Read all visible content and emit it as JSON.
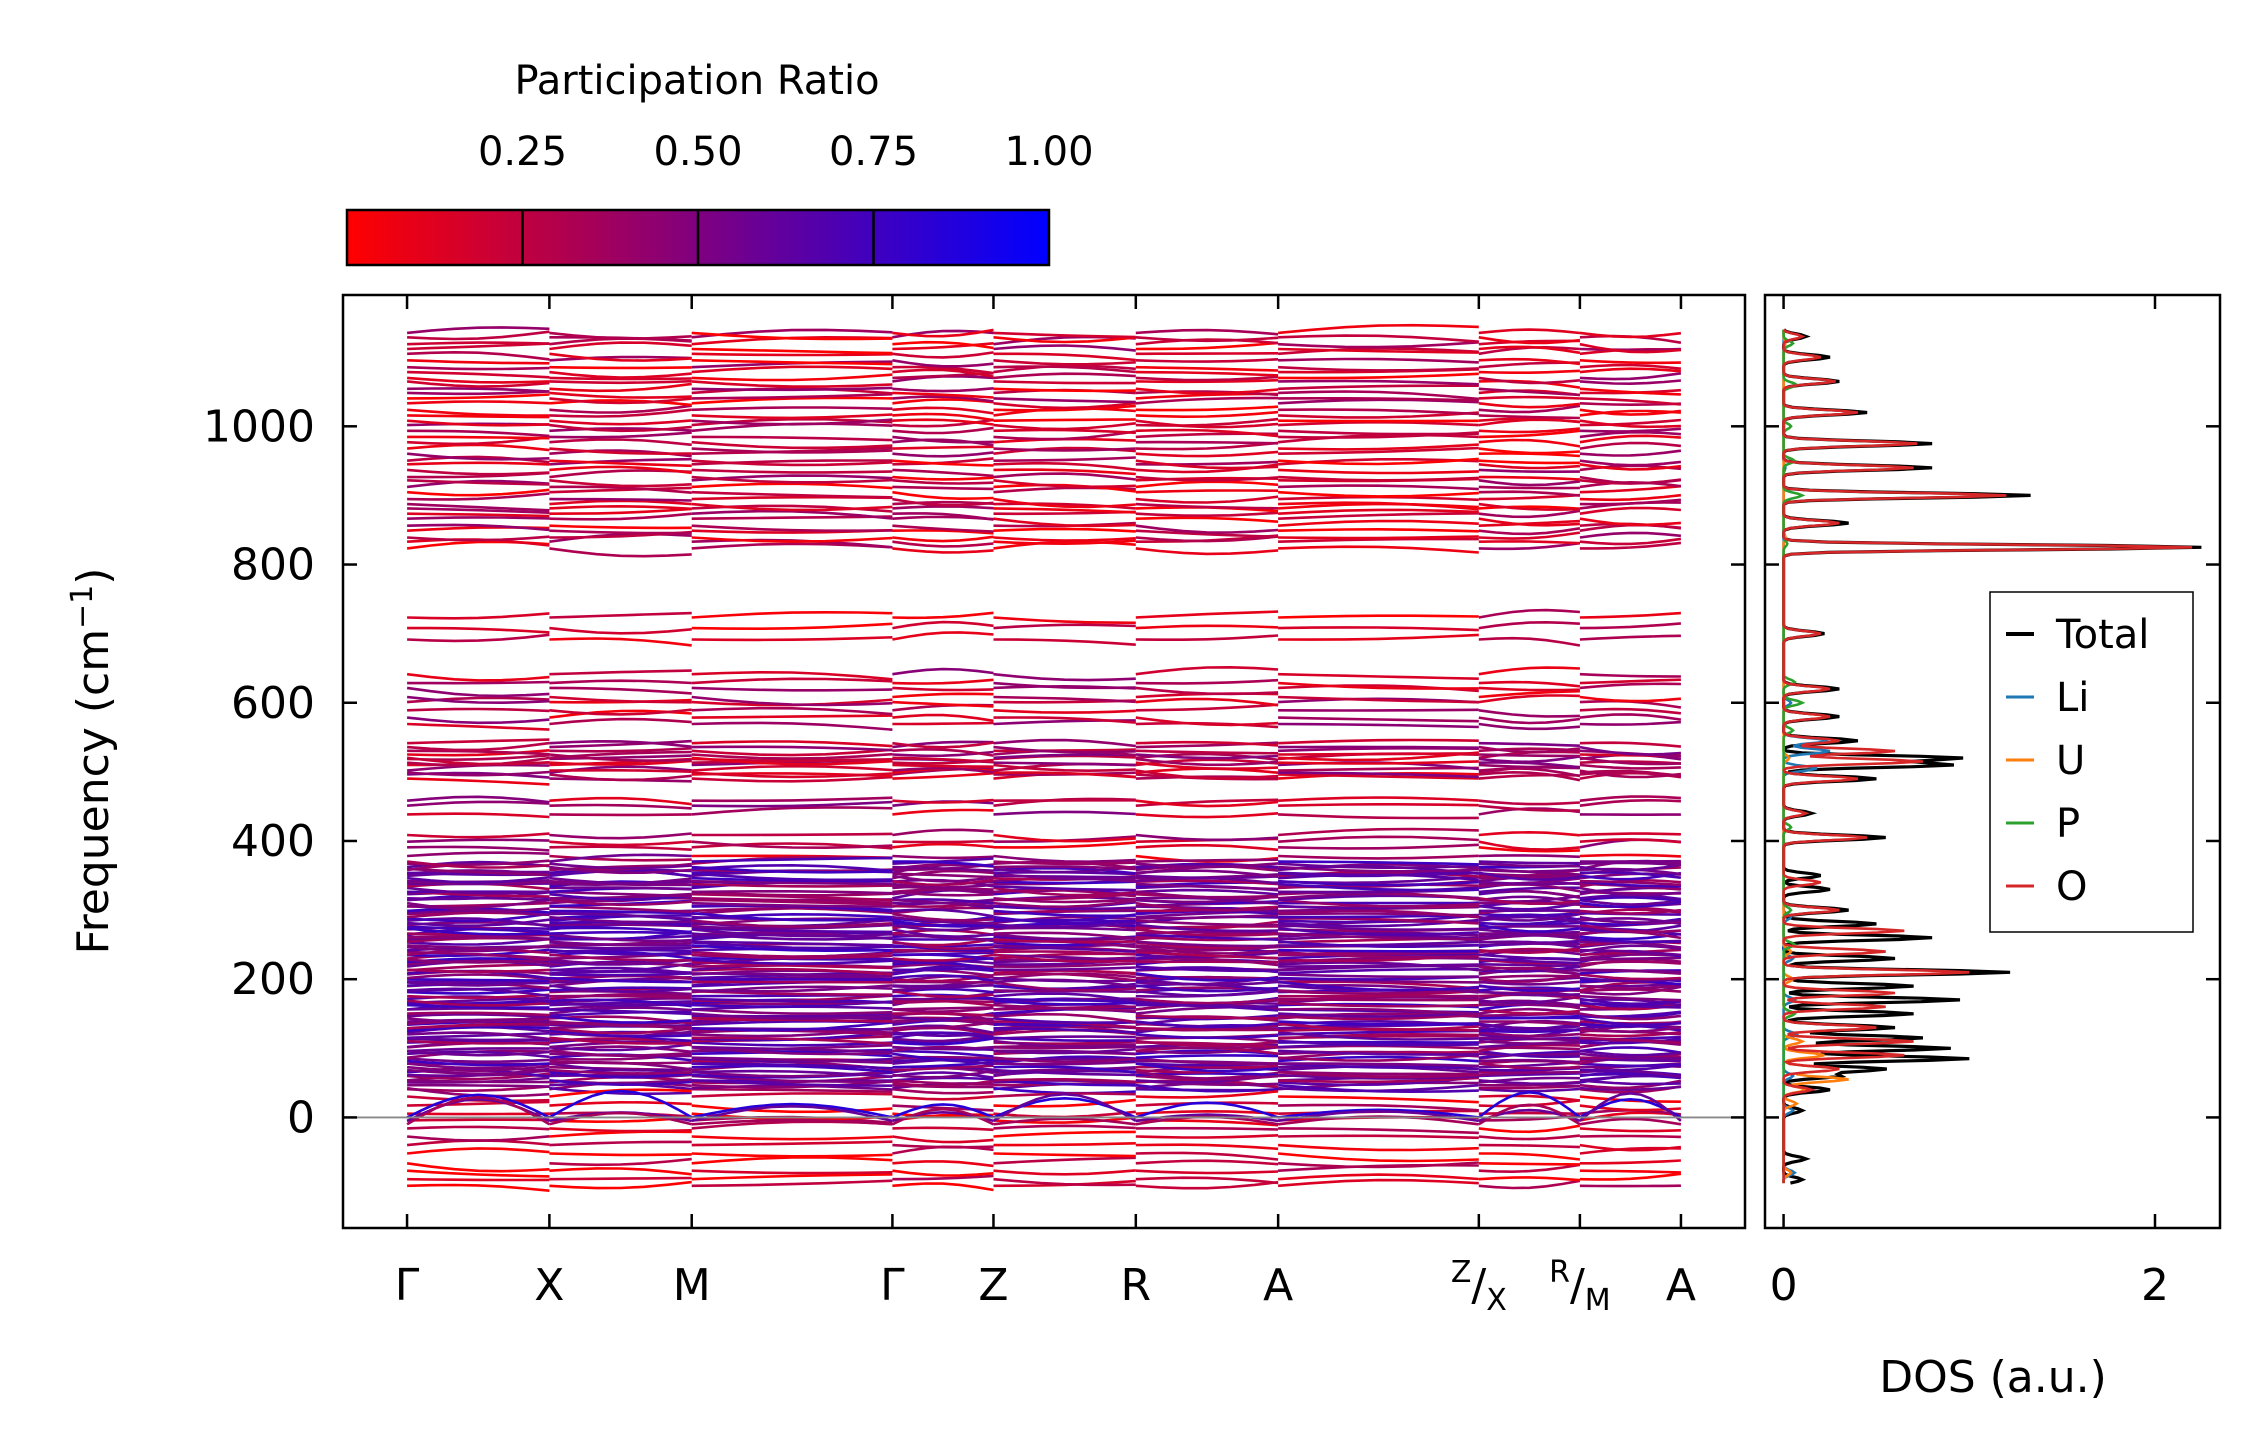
{
  "colorbar": {
    "title": "Participation Ratio",
    "ticks": [
      0.25,
      0.5,
      0.75,
      1.0
    ],
    "tick_labels": [
      "0.25",
      "0.50",
      "0.75",
      "1.00"
    ],
    "range": [
      0.0,
      1.0
    ],
    "color_low": "#ff0000",
    "color_high": "#0000ff"
  },
  "chart_data": [
    {
      "type": "line",
      "name": "phonon-band-structure",
      "ylabel": "Frequency (cm",
      "ylabel_sup": "−1",
      "ylabel_end": ")",
      "ylim": [
        -160,
        1190
      ],
      "yticks": [
        0,
        200,
        400,
        600,
        800,
        1000
      ],
      "ytick_labels": [
        "0",
        "200",
        "400",
        "600",
        "800",
        "1000"
      ],
      "segments": [
        {
          "from": "Γ",
          "to": "X",
          "x0": 0,
          "x1": 1
        },
        {
          "from": "X",
          "to": "M",
          "x0": 1,
          "x1": 2
        },
        {
          "from": "M",
          "to": "Γ",
          "x0": 2,
          "x1": 3.41
        },
        {
          "from": "Γ",
          "to": "Z",
          "x0": 3.41,
          "x1": 4.12
        },
        {
          "from": "Z",
          "to": "R",
          "x0": 4.12,
          "x1": 5.12
        },
        {
          "from": "R",
          "to": "A",
          "x0": 5.12,
          "x1": 6.12
        },
        {
          "from": "A",
          "to": "Z",
          "x0": 6.12,
          "x1": 7.53
        },
        {
          "from": "X",
          "to": "R",
          "x0": 7.53,
          "x1": 8.24
        },
        {
          "from": "M",
          "to": "A",
          "x0": 8.24,
          "x1": 8.95
        }
      ],
      "xticks": [
        {
          "pos": 0,
          "label": "Γ"
        },
        {
          "pos": 1,
          "label": "X"
        },
        {
          "pos": 2,
          "label": "M"
        },
        {
          "pos": 3.41,
          "label": "Γ"
        },
        {
          "pos": 4.12,
          "label": "Z"
        },
        {
          "pos": 5.12,
          "label": "R"
        },
        {
          "pos": 6.12,
          "label": "A"
        },
        {
          "pos": 7.53,
          "label_sup": "Z",
          "label_sep": "/",
          "label_sub": "X"
        },
        {
          "pos": 8.24,
          "label_sup": "R",
          "label_sep": "/",
          "label_sub": "M"
        },
        {
          "pos": 8.95,
          "label": "A"
        }
      ],
      "xlim": [
        -0.45,
        9.4
      ],
      "zero_line": 0,
      "band_groups": [
        {
          "range": [
            825,
            1135
          ],
          "count": 40,
          "participation_ratio": 0.2
        },
        {
          "range": [
            690,
            725
          ],
          "count": 3,
          "participation_ratio": 0.15
        },
        {
          "range": [
            570,
            640
          ],
          "count": 8,
          "participation_ratio": 0.25
        },
        {
          "range": [
            490,
            540
          ],
          "count": 12,
          "participation_ratio": 0.3
        },
        {
          "range": [
            440,
            460
          ],
          "count": 3,
          "participation_ratio": 0.3
        },
        {
          "range": [
            380,
            410
          ],
          "count": 4,
          "participation_ratio": 0.25
        },
        {
          "range": [
            40,
            370
          ],
          "count": 110,
          "participation_ratio": 0.55
        },
        {
          "range": [
            -100,
            30
          ],
          "count": 12,
          "participation_ratio": 0.15
        }
      ]
    },
    {
      "type": "line",
      "name": "phonon-dos",
      "xlabel": "DOS (a.u.)",
      "xlim": [
        -0.1,
        2.35
      ],
      "xticks": [
        0,
        2
      ],
      "xtick_labels": [
        "0",
        "2"
      ],
      "ylim": [
        -160,
        1190
      ],
      "legend_position": "center-right",
      "series": [
        {
          "name": "Total",
          "color": "#000000",
          "peaks": [
            [
              -90,
              0.1
            ],
            [
              -60,
              0.12
            ],
            [
              10,
              0.1
            ],
            [
              40,
              0.25
            ],
            [
              60,
              0.3
            ],
            [
              70,
              0.55
            ],
            [
              85,
              1.0
            ],
            [
              100,
              0.9
            ],
            [
              115,
              0.75
            ],
            [
              130,
              0.6
            ],
            [
              150,
              0.7
            ],
            [
              170,
              0.95
            ],
            [
              190,
              0.7
            ],
            [
              210,
              1.22
            ],
            [
              230,
              0.6
            ],
            [
              260,
              0.8
            ],
            [
              280,
              0.5
            ],
            [
              300,
              0.35
            ],
            [
              330,
              0.25
            ],
            [
              350,
              0.2
            ],
            [
              405,
              0.55
            ],
            [
              440,
              0.15
            ],
            [
              490,
              0.5
            ],
            [
              510,
              0.9
            ],
            [
              520,
              0.95
            ],
            [
              545,
              0.4
            ],
            [
              580,
              0.3
            ],
            [
              620,
              0.3
            ],
            [
              700,
              0.22
            ],
            [
              825,
              2.25
            ],
            [
              860,
              0.35
            ],
            [
              900,
              1.33
            ],
            [
              940,
              0.8
            ],
            [
              975,
              0.8
            ],
            [
              1020,
              0.45
            ],
            [
              1065,
              0.3
            ],
            [
              1100,
              0.25
            ],
            [
              1130,
              0.12
            ]
          ]
        },
        {
          "name": "Li",
          "color": "#1f77b4",
          "peaks": [
            [
              -80,
              0.06
            ],
            [
              10,
              0.05
            ],
            [
              60,
              0.05
            ],
            [
              120,
              0.07
            ],
            [
              170,
              0.06
            ],
            [
              230,
              0.05
            ],
            [
              290,
              0.04
            ],
            [
              505,
              0.18
            ],
            [
              530,
              0.25
            ],
            [
              545,
              0.24
            ],
            [
              600,
              0.04
            ],
            [
              940,
              0.01
            ]
          ]
        },
        {
          "name": "U",
          "color": "#ff7f0e",
          "peaks": [
            [
              -80,
              0.04
            ],
            [
              20,
              0.07
            ],
            [
              40,
              0.12
            ],
            [
              55,
              0.35
            ],
            [
              70,
              0.3
            ],
            [
              90,
              0.22
            ],
            [
              110,
              0.1
            ],
            [
              150,
              0.05
            ],
            [
              200,
              0.05
            ],
            [
              240,
              0.04
            ],
            [
              520,
              0.03
            ],
            [
              840,
              0.01
            ],
            [
              1120,
              0.01
            ]
          ]
        },
        {
          "name": "P",
          "color": "#2ca02c",
          "peaks": [
            [
              150,
              0.06
            ],
            [
              250,
              0.06
            ],
            [
              300,
              0.04
            ],
            [
              420,
              0.04
            ],
            [
              560,
              0.05
            ],
            [
              600,
              0.1
            ],
            [
              630,
              0.06
            ],
            [
              830,
              0.02
            ],
            [
              900,
              0.1
            ],
            [
              950,
              0.06
            ],
            [
              1000,
              0.04
            ],
            [
              1060,
              0.07
            ],
            [
              1120,
              0.05
            ]
          ]
        },
        {
          "name": "O",
          "color": "#d62728",
          "peaks": [
            [
              40,
              0.15
            ],
            [
              70,
              0.3
            ],
            [
              90,
              0.65
            ],
            [
              110,
              0.7
            ],
            [
              130,
              0.5
            ],
            [
              160,
              0.55
            ],
            [
              180,
              0.6
            ],
            [
              210,
              1.0
            ],
            [
              240,
              0.55
            ],
            [
              270,
              0.65
            ],
            [
              300,
              0.3
            ],
            [
              340,
              0.2
            ],
            [
              405,
              0.45
            ],
            [
              440,
              0.12
            ],
            [
              490,
              0.4
            ],
            [
              515,
              0.75
            ],
            [
              530,
              0.6
            ],
            [
              545,
              0.3
            ],
            [
              580,
              0.25
            ],
            [
              620,
              0.25
            ],
            [
              700,
              0.2
            ],
            [
              825,
              2.2
            ],
            [
              860,
              0.3
            ],
            [
              900,
              1.2
            ],
            [
              940,
              0.7
            ],
            [
              975,
              0.72
            ],
            [
              1020,
              0.4
            ],
            [
              1065,
              0.28
            ],
            [
              1100,
              0.2
            ],
            [
              1130,
              0.1
            ]
          ]
        }
      ]
    }
  ]
}
